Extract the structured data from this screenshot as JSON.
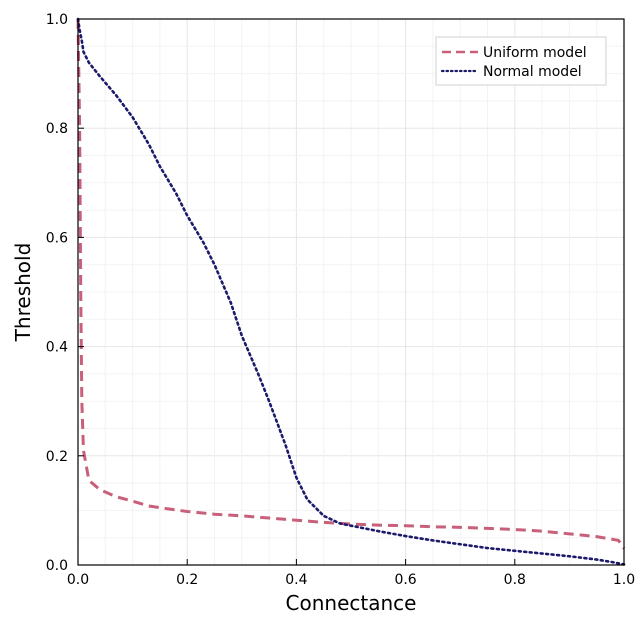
{
  "chart_data": {
    "type": "line",
    "xlabel": "Connectance",
    "ylabel": "Threshold",
    "xlim": [
      0,
      1
    ],
    "ylim": [
      0,
      1
    ],
    "xticks": [
      "0.0",
      "0.2",
      "0.4",
      "0.6",
      "0.8",
      "1.0"
    ],
    "yticks": [
      "0.0",
      "0.2",
      "0.4",
      "0.6",
      "0.8",
      "1.0"
    ],
    "grid": true,
    "legend_position": "top-right",
    "series": [
      {
        "name": "Uniform model",
        "color": "#c9607a",
        "style": "dashed",
        "x": [
          0.0,
          0.003,
          0.005,
          0.007,
          0.01,
          0.02,
          0.04,
          0.07,
          0.1,
          0.13,
          0.15,
          0.2,
          0.25,
          0.3,
          0.35,
          0.4,
          0.45,
          0.5,
          0.55,
          0.6,
          0.65,
          0.7,
          0.75,
          0.8,
          0.85,
          0.9,
          0.95,
          0.99,
          1.0
        ],
        "y": [
          1.0,
          0.8,
          0.5,
          0.3,
          0.21,
          0.155,
          0.138,
          0.125,
          0.117,
          0.108,
          0.105,
          0.098,
          0.093,
          0.09,
          0.086,
          0.082,
          0.078,
          0.075,
          0.073,
          0.072,
          0.07,
          0.069,
          0.067,
          0.065,
          0.062,
          0.057,
          0.052,
          0.045,
          0.03
        ]
      },
      {
        "name": "Normal model",
        "color": "#1c1a6b",
        "style": "dotted",
        "x": [
          0.0,
          0.003,
          0.007,
          0.01,
          0.02,
          0.04,
          0.07,
          0.1,
          0.13,
          0.15,
          0.18,
          0.2,
          0.23,
          0.25,
          0.28,
          0.3,
          0.33,
          0.35,
          0.38,
          0.4,
          0.42,
          0.45,
          0.48,
          0.5,
          0.55,
          0.6,
          0.65,
          0.7,
          0.75,
          0.8,
          0.85,
          0.9,
          0.95,
          0.98,
          1.0
        ],
        "y": [
          1.0,
          0.98,
          0.96,
          0.94,
          0.92,
          0.895,
          0.86,
          0.82,
          0.77,
          0.73,
          0.68,
          0.64,
          0.59,
          0.55,
          0.48,
          0.42,
          0.35,
          0.3,
          0.22,
          0.16,
          0.12,
          0.09,
          0.076,
          0.072,
          0.062,
          0.053,
          0.045,
          0.038,
          0.031,
          0.026,
          0.021,
          0.016,
          0.01,
          0.005,
          0.001
        ]
      }
    ]
  }
}
